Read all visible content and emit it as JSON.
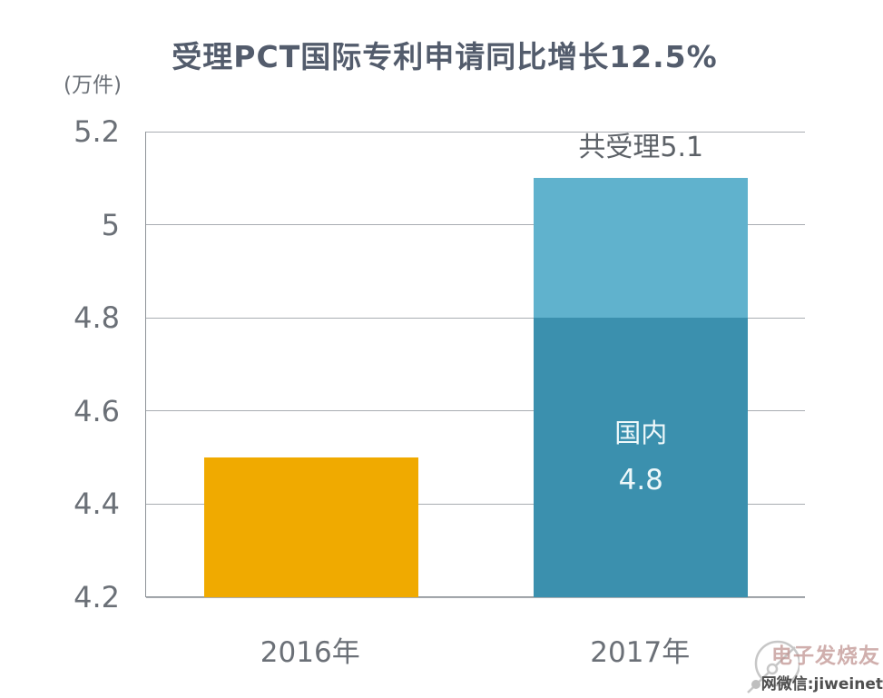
{
  "title": "受理PCT国际专利申请同比增长12.5%",
  "y_axis_unit": "(万件)",
  "watermark": {
    "brand_text": "电子发烧友",
    "wechat_text": "网微信:jiweinet"
  },
  "colors": {
    "bar_2016": "#F0AA00",
    "bar_2017_domestic": "#3B90AE",
    "bar_2017_top": "#60B2CD",
    "grid": "#a9adb2",
    "tick_text": "#6b7077",
    "title_text": "#535c6c"
  },
  "chart_data": {
    "type": "bar",
    "stacked": true,
    "title": "受理PCT国际专利申请同比增长12.5%",
    "unit": "万件",
    "categories": [
      "2016年",
      "2017年"
    ],
    "ylim": [
      4.2,
      5.2
    ],
    "yticks": [
      "5.2",
      "5",
      "4.8",
      "4.6",
      "4.4",
      "4.2"
    ],
    "grid": true,
    "legend_position": "none",
    "bars": [
      {
        "category": "2016年",
        "total": 4.5,
        "segments": [
          {
            "from": 4.2,
            "to": 4.5,
            "value": 4.5,
            "color": "#F0AA00"
          }
        ]
      },
      {
        "category": "2017年",
        "total": 5.1,
        "total_label": "共受理5.1",
        "segments": [
          {
            "from": 4.2,
            "to": 4.8,
            "value": 4.8,
            "label": "国内",
            "value_label": "4.8",
            "color": "#3B90AE"
          },
          {
            "from": 4.8,
            "to": 5.1,
            "value": 0.3,
            "color": "#60B2CD"
          }
        ]
      }
    ]
  }
}
